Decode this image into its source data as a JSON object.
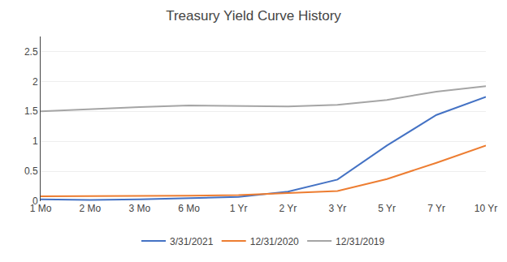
{
  "chart_data": {
    "type": "line",
    "title": "Treasury Yield Curve History",
    "categories": [
      "1 Mo",
      "2 Mo",
      "3 Mo",
      "6 Mo",
      "1 Yr",
      "2 Yr",
      "3 Yr",
      "5 Yr",
      "7 Yr",
      "10 Yr"
    ],
    "series": [
      {
        "name": "3/31/2021",
        "color": "#4472c4",
        "values": [
          0.03,
          0.02,
          0.03,
          0.05,
          0.07,
          0.16,
          0.36,
          0.93,
          1.44,
          1.74
        ]
      },
      {
        "name": "12/31/2020",
        "color": "#ed7d31",
        "values": [
          0.08,
          0.08,
          0.08,
          0.09,
          0.1,
          0.13,
          0.17,
          0.37,
          0.64,
          0.93
        ]
      },
      {
        "name": "12/31/2019",
        "color": "#a5a5a5",
        "values": [
          1.5,
          1.54,
          1.57,
          1.6,
          1.59,
          1.58,
          1.61,
          1.69,
          1.83,
          1.92
        ]
      }
    ],
    "ylim": [
      0,
      2.75
    ],
    "yticks": [
      0,
      0.5,
      1,
      1.5,
      2,
      2.5
    ],
    "grid": true,
    "legend": "bottom"
  }
}
